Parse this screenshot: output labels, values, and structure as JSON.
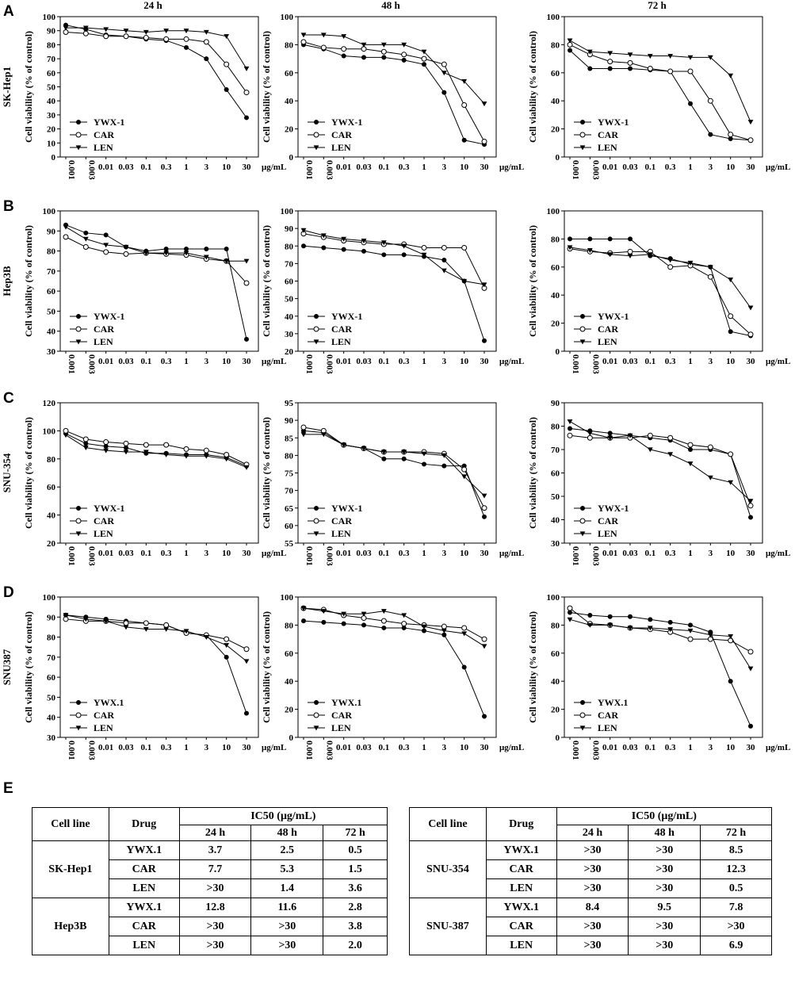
{
  "panel_labels": [
    "A",
    "B",
    "C",
    "D",
    "E"
  ],
  "time_headers": [
    "24 h",
    "48 h",
    "72 h"
  ],
  "row_labels": [
    "SK-Hep1",
    "Hep3B",
    "SNU-354",
    "SNU387"
  ],
  "y_axis_label": "Cell viability (% of control)",
  "x_unit": "μg/mL",
  "x_ticks": [
    "0.001",
    "0.003",
    "0.01",
    "0.03",
    "0.1",
    "0.3",
    "1",
    "3",
    "10",
    "30"
  ],
  "chart_data": [
    {
      "type": "line",
      "row": "SK-Hep1",
      "time": "24 h",
      "ylim": [
        0,
        100
      ],
      "yticks": [
        "0",
        "10",
        "20",
        "30",
        "40",
        "50",
        "60",
        "70",
        "80",
        "90",
        "100"
      ],
      "legend": [
        "YWX-1",
        "CAR",
        "LEN"
      ],
      "series": [
        {
          "name": "YWX-1",
          "values": [
            94,
            91,
            87,
            86,
            84,
            83,
            78,
            70,
            48,
            28
          ]
        },
        {
          "name": "CAR",
          "values": [
            89,
            88,
            86,
            86,
            85,
            84,
            84,
            82,
            66,
            46
          ]
        },
        {
          "name": "LEN",
          "values": [
            92,
            92,
            91,
            90,
            89,
            90,
            90,
            89,
            86,
            63
          ]
        }
      ]
    },
    {
      "type": "line",
      "row": "SK-Hep1",
      "time": "48 h",
      "ylim": [
        0,
        100
      ],
      "yticks": [
        "0",
        "20",
        "40",
        "60",
        "80",
        "100"
      ],
      "legend": [
        "YWX-1",
        "CAR",
        "LEN"
      ],
      "series": [
        {
          "name": "YWX-1",
          "values": [
            80,
            77,
            72,
            71,
            71,
            69,
            66,
            46,
            12,
            9
          ]
        },
        {
          "name": "CAR",
          "values": [
            82,
            78,
            77,
            77,
            75,
            73,
            70,
            66,
            37,
            11
          ]
        },
        {
          "name": "LEN",
          "values": [
            87,
            87,
            86,
            80,
            80,
            80,
            75,
            60,
            54,
            38
          ]
        }
      ]
    },
    {
      "type": "line",
      "row": "SK-Hep1",
      "time": "72 h",
      "ylim": [
        0,
        100
      ],
      "yticks": [
        "0",
        "20",
        "40",
        "60",
        "80",
        "100"
      ],
      "legend": [
        "YWX-1",
        "CAR",
        "LEN"
      ],
      "series": [
        {
          "name": "YWX-1",
          "values": [
            76,
            63,
            63,
            63,
            62,
            61,
            38,
            16,
            13,
            12
          ]
        },
        {
          "name": "CAR",
          "values": [
            80,
            73,
            68,
            67,
            63,
            61,
            61,
            40,
            16,
            12
          ]
        },
        {
          "name": "LEN",
          "values": [
            83,
            75,
            74,
            73,
            72,
            72,
            71,
            71,
            58,
            25
          ]
        }
      ]
    },
    {
      "type": "line",
      "row": "Hep3B",
      "time": "24 h",
      "ylim": [
        30,
        100
      ],
      "yticks": [
        "30",
        "40",
        "50",
        "60",
        "70",
        "80",
        "90",
        "100"
      ],
      "legend": [
        "YWX-1",
        "CAR",
        "LEN"
      ],
      "series": [
        {
          "name": "YWX-1",
          "values": [
            93,
            89,
            88,
            82,
            80,
            81,
            81,
            81,
            81,
            36
          ]
        },
        {
          "name": "CAR",
          "values": [
            87,
            82,
            79.5,
            78.5,
            79,
            78.5,
            78,
            76,
            75,
            64
          ]
        },
        {
          "name": "LEN",
          "values": [
            92,
            86,
            83,
            82,
            79,
            79,
            79,
            77,
            75,
            75
          ]
        }
      ]
    },
    {
      "type": "line",
      "row": "Hep3B",
      "time": "48 h",
      "ylim": [
        20,
        100
      ],
      "yticks": [
        "20",
        "30",
        "40",
        "50",
        "60",
        "70",
        "80",
        "90",
        "100"
      ],
      "legend": [
        "YWX-1",
        "CAR",
        "LEN"
      ],
      "series": [
        {
          "name": "YWX-1",
          "values": [
            80,
            79,
            78,
            77,
            75,
            75,
            74,
            72,
            60,
            26
          ]
        },
        {
          "name": "CAR",
          "values": [
            87,
            85,
            83,
            82,
            81,
            81,
            79,
            79,
            79,
            56
          ]
        },
        {
          "name": "LEN",
          "values": [
            89,
            86,
            84,
            83,
            82,
            80,
            75,
            66,
            60,
            58
          ]
        }
      ]
    },
    {
      "type": "line",
      "row": "Hep3B",
      "time": "72 h",
      "ylim": [
        0,
        100
      ],
      "yticks": [
        "0",
        "20",
        "40",
        "60",
        "80",
        "100"
      ],
      "legend": [
        "YWX-1",
        "CAR",
        "LEN"
      ],
      "series": [
        {
          "name": "YWX-1",
          "values": [
            80,
            80,
            80,
            80,
            68,
            66,
            62,
            60,
            14,
            11
          ]
        },
        {
          "name": "CAR",
          "values": [
            73,
            71,
            70,
            71,
            71,
            60,
            61,
            53,
            25,
            12
          ]
        },
        {
          "name": "LEN",
          "values": [
            74,
            72,
            69,
            68,
            69,
            65,
            63,
            60,
            51,
            31
          ]
        }
      ]
    },
    {
      "type": "line",
      "row": "SNU-354",
      "time": "24 h",
      "ylim": [
        20,
        120
      ],
      "yticks": [
        "20",
        "40",
        "60",
        "80",
        "100",
        "120"
      ],
      "legend": [
        "YWX-1",
        "CAR",
        "LEN"
      ],
      "series": [
        {
          "name": "YWX-1",
          "values": [
            98,
            91,
            89,
            88,
            84,
            84,
            83,
            83,
            81,
            75
          ]
        },
        {
          "name": "CAR",
          "values": [
            100,
            94,
            92,
            91,
            90,
            90,
            87,
            86,
            83,
            76
          ]
        },
        {
          "name": "LEN",
          "values": [
            97,
            88,
            86,
            85,
            85,
            83,
            82,
            82,
            80,
            74
          ]
        }
      ]
    },
    {
      "type": "line",
      "row": "SNU-354",
      "time": "48 h",
      "ylim": [
        55,
        95
      ],
      "yticks": [
        "55",
        "60",
        "65",
        "70",
        "75",
        "80",
        "85",
        "90",
        "95"
      ],
      "legend": [
        "YWX-1",
        "CAR",
        "LEN"
      ],
      "series": [
        {
          "name": "YWX-1",
          "values": [
            87,
            86.5,
            83,
            82,
            79,
            79,
            77.5,
            77,
            77,
            62.5
          ]
        },
        {
          "name": "CAR",
          "values": [
            88,
            87,
            83,
            82,
            81,
            81,
            81,
            80.5,
            76,
            65
          ]
        },
        {
          "name": "LEN",
          "values": [
            86,
            86,
            83,
            82,
            81,
            81,
            80.5,
            80,
            74,
            68.5
          ]
        }
      ]
    },
    {
      "type": "line",
      "row": "SNU-354",
      "time": "72 h",
      "ylim": [
        30,
        90
      ],
      "yticks": [
        "30",
        "40",
        "50",
        "60",
        "70",
        "80",
        "90"
      ],
      "legend": [
        "YWX-1",
        "CAR",
        "LEN"
      ],
      "series": [
        {
          "name": "YWX-1",
          "values": [
            79,
            78,
            77,
            76,
            75,
            74,
            70,
            70,
            68,
            41
          ]
        },
        {
          "name": "CAR",
          "values": [
            76,
            75,
            75,
            75,
            76,
            75,
            72,
            71,
            68,
            46
          ]
        },
        {
          "name": "LEN",
          "values": [
            82,
            77,
            75,
            76,
            70,
            68,
            64,
            58,
            56,
            48
          ]
        }
      ]
    },
    {
      "type": "line",
      "row": "SNU387",
      "time": "24 h",
      "ylim": [
        30,
        100
      ],
      "yticks": [
        "30",
        "40",
        "50",
        "60",
        "70",
        "80",
        "90",
        "100"
      ],
      "legend": [
        "YWX.1",
        "CAR",
        "LEN"
      ],
      "series": [
        {
          "name": "YWX.1",
          "values": [
            91,
            90,
            89,
            88,
            87,
            86,
            82,
            81,
            70,
            42
          ]
        },
        {
          "name": "CAR",
          "values": [
            89,
            88,
            88,
            87,
            87,
            86,
            82,
            81,
            79,
            74
          ]
        },
        {
          "name": "LEN",
          "values": [
            91,
            89,
            88,
            85,
            84,
            84,
            83,
            80,
            76,
            68
          ]
        }
      ]
    },
    {
      "type": "line",
      "row": "SNU387",
      "time": "48 h",
      "ylim": [
        0,
        100
      ],
      "yticks": [
        "0",
        "20",
        "40",
        "60",
        "80",
        "100"
      ],
      "legend": [
        "YWX.1",
        "CAR",
        "LEN"
      ],
      "series": [
        {
          "name": "YWX.1",
          "values": [
            83,
            82,
            81,
            80,
            78,
            78,
            76,
            73,
            50,
            15
          ]
        },
        {
          "name": "CAR",
          "values": [
            92,
            91,
            87,
            85,
            83,
            81,
            80,
            79,
            78,
            70
          ]
        },
        {
          "name": "LEN",
          "values": [
            92,
            90,
            88,
            88,
            90,
            87,
            79,
            76,
            74,
            65
          ]
        }
      ]
    },
    {
      "type": "line",
      "row": "SNU387",
      "time": "72 h",
      "ylim": [
        0,
        100
      ],
      "yticks": [
        "0",
        "20",
        "40",
        "60",
        "80",
        "100"
      ],
      "legend": [
        "YWX.1",
        "CAR",
        "LEN"
      ],
      "series": [
        {
          "name": "YWX.1",
          "values": [
            89,
            87,
            86,
            86,
            84,
            82,
            80,
            75,
            40,
            8
          ]
        },
        {
          "name": "CAR",
          "values": [
            92,
            81,
            80,
            78,
            77,
            75,
            70,
            70,
            69,
            61
          ]
        },
        {
          "name": "LEN",
          "values": [
            84,
            80,
            80,
            78,
            78,
            77,
            76,
            73,
            72,
            49
          ]
        }
      ]
    }
  ],
  "table": {
    "left": {
      "head": {
        "cell_line": "Cell line",
        "drug": "Drug",
        "ic50": "IC50 (μg/mL)",
        "times": [
          "24 h",
          "48 h",
          "72 h"
        ]
      },
      "groups": [
        {
          "name": "SK-Hep1",
          "rows": [
            [
              "YWX.1",
              "3.7",
              "2.5",
              "0.5"
            ],
            [
              "CAR",
              "7.7",
              "5.3",
              "1.5"
            ],
            [
              "LEN",
              ">30",
              "1.4",
              "3.6"
            ]
          ]
        },
        {
          "name": "Hep3B",
          "rows": [
            [
              "YWX.1",
              "12.8",
              "11.6",
              "2.8"
            ],
            [
              "CAR",
              ">30",
              ">30",
              "3.8"
            ],
            [
              "LEN",
              ">30",
              ">30",
              "2.0"
            ]
          ]
        }
      ]
    },
    "right": {
      "head": {
        "cell_line": "Cell line",
        "drug": "Drug",
        "ic50": "IC50 (μg/mL)",
        "times": [
          "24 h",
          "48 h",
          "72 h"
        ]
      },
      "groups": [
        {
          "name": "SNU-354",
          "rows": [
            [
              "YWX.1",
              ">30",
              ">30",
              "8.5"
            ],
            [
              "CAR",
              ">30",
              ">30",
              "12.3"
            ],
            [
              "LEN",
              ">30",
              ">30",
              "0.5"
            ]
          ]
        },
        {
          "name": "SNU-387",
          "rows": [
            [
              "YWX.1",
              "8.4",
              "9.5",
              "7.8"
            ],
            [
              "CAR",
              ">30",
              ">30",
              ">30"
            ],
            [
              "LEN",
              ">30",
              ">30",
              "6.9"
            ]
          ]
        }
      ]
    }
  }
}
